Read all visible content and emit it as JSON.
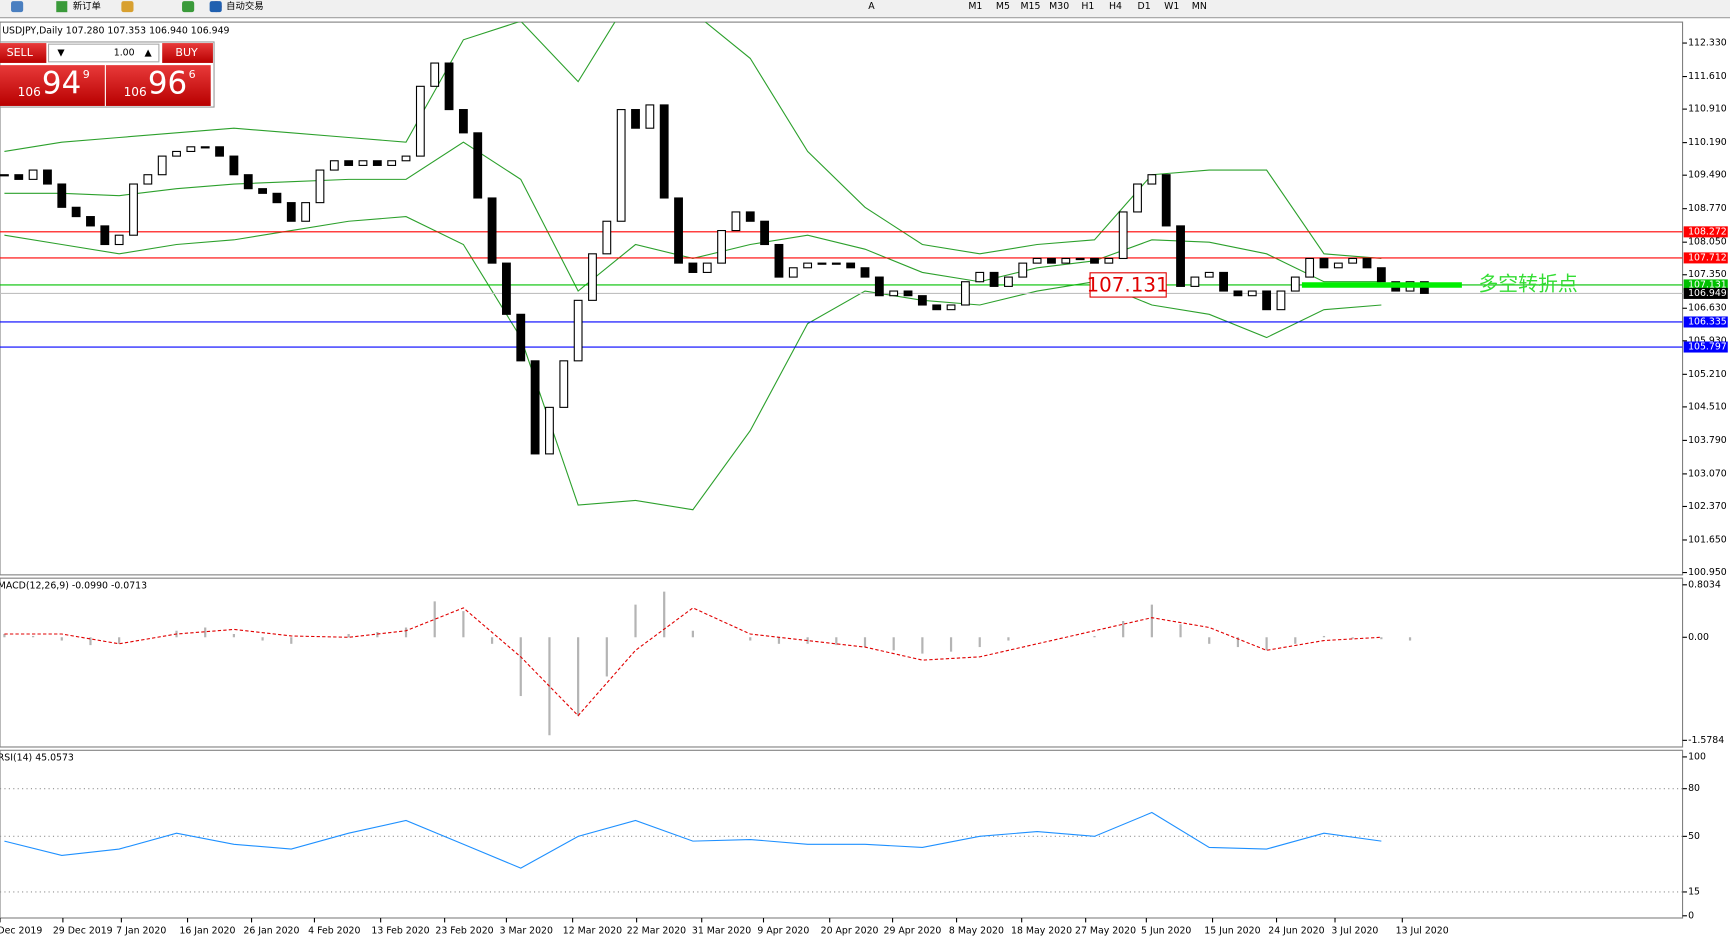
{
  "toolbar": {
    "new_order": "新订单",
    "auto_trading": "自动交易",
    "text_tool": "A",
    "timeframes": [
      "M1",
      "M5",
      "M15",
      "M30",
      "H1",
      "H4",
      "D1",
      "W1",
      "MN"
    ]
  },
  "trade_panel": {
    "sell": "SELL",
    "buy": "BUY",
    "lots": "1.00",
    "sell_price": {
      "big": "106",
      "main": "94",
      "sup": "9"
    },
    "buy_price": {
      "big": "106",
      "main": "96",
      "sup": "6"
    }
  },
  "chart_data": [
    {
      "type": "candlestick",
      "title": "USDJPY,Daily  107.280 107.353 106.940 106.949",
      "values": [
        109.5,
        109.4,
        109.6,
        109.3,
        108.8,
        108.6,
        108.4,
        108.0,
        108.2,
        109.3,
        109.5,
        109.9,
        110.0,
        110.1,
        110.1,
        109.9,
        109.5,
        109.2,
        109.1,
        108.9,
        108.5,
        108.9,
        109.6,
        109.8,
        109.7,
        109.8,
        109.7,
        109.8,
        109.9,
        111.4,
        111.9,
        110.9,
        110.4,
        109.0,
        107.6,
        106.5,
        105.5,
        103.5,
        104.5,
        105.5,
        106.8,
        107.8,
        108.5,
        110.9,
        110.5,
        111.0,
        109.0,
        107.6,
        107.4,
        107.6,
        108.3,
        108.7,
        108.5,
        108.0,
        107.3,
        107.5,
        107.6,
        107.6,
        107.6,
        107.5,
        107.3,
        106.9,
        107.0,
        106.9,
        106.7,
        106.6,
        106.7,
        107.2,
        107.4,
        107.1,
        107.3,
        107.6,
        107.7,
        107.6,
        107.7,
        107.7,
        107.6,
        107.7,
        108.7,
        109.3,
        109.5,
        108.4,
        107.1,
        107.3,
        107.4,
        107.0,
        106.9,
        107.0,
        106.6,
        107.0,
        107.3,
        107.7,
        107.5,
        107.6,
        107.7,
        107.5,
        107.2,
        107.0,
        107.2,
        106.95
      ],
      "bands": {
        "color": "#2ca02c",
        "upper": [
          110.0,
          110.2,
          110.3,
          110.4,
          110.5,
          110.4,
          110.3,
          110.2,
          112.4,
          112.8,
          111.5,
          113.5,
          113.0,
          112.0,
          110.0,
          108.8,
          108.0,
          107.8,
          108.0,
          108.1,
          109.5,
          109.6,
          109.6,
          107.8,
          107.7
        ],
        "middle": [
          109.1,
          109.1,
          109.05,
          109.2,
          109.3,
          109.35,
          109.4,
          109.4,
          110.2,
          109.4,
          107.0,
          108.0,
          107.7,
          108.0,
          108.2,
          107.9,
          107.4,
          107.2,
          107.5,
          107.65,
          108.1,
          108.05,
          107.8,
          107.2,
          107.2
        ],
        "lower": [
          108.2,
          108.0,
          107.8,
          108.0,
          108.1,
          108.3,
          108.5,
          108.6,
          108.0,
          106.0,
          102.4,
          102.5,
          102.3,
          104.0,
          106.3,
          107.0,
          106.8,
          106.7,
          107.0,
          107.2,
          106.7,
          106.5,
          106.0,
          106.6,
          106.7
        ]
      },
      "ylim": [
        100.9,
        112.78
      ],
      "yticks": [
        {
          "value": 112.33,
          "label": "112.330"
        },
        {
          "value": 111.61,
          "label": "111.610"
        },
        {
          "value": 110.91,
          "label": "110.910"
        },
        {
          "value": 110.19,
          "label": "110.190"
        },
        {
          "value": 109.49,
          "label": "109.490"
        },
        {
          "value": 108.77,
          "label": "108.770"
        },
        {
          "value": 108.05,
          "label": "108.050"
        },
        {
          "value": 107.35,
          "label": "107.350"
        },
        {
          "value": 106.63,
          "label": "106.630"
        },
        {
          "value": 105.93,
          "label": "105.930"
        },
        {
          "value": 105.21,
          "label": "105.210"
        },
        {
          "value": 104.51,
          "label": "104.510"
        },
        {
          "value": 103.79,
          "label": "103.790"
        },
        {
          "value": 103.07,
          "label": "103.070"
        },
        {
          "value": 102.37,
          "label": "102.370"
        },
        {
          "value": 101.65,
          "label": "101.650"
        },
        {
          "value": 100.95,
          "label": "100.950"
        }
      ],
      "levels": [
        {
          "value": 108.272,
          "color": "#ff0000",
          "label_background": "#ff0000"
        },
        {
          "value": 107.712,
          "color": "#ff0000",
          "label_background": "#ff0000"
        },
        {
          "value": 107.131,
          "color": "#00c000",
          "label_background": "#00c000"
        },
        {
          "value": 106.949,
          "color": "#c0c0c0",
          "label_background": "#000000"
        },
        {
          "value": 106.335,
          "color": "#0000ff",
          "label_background": "#0000ff"
        },
        {
          "value": 105.797,
          "color": "#0000ff",
          "label_background": "#0000ff"
        }
      ],
      "annotation": "多空转折点",
      "x_labels": [
        "Dec 2019",
        "29 Dec 2019",
        "7 Jan 2020",
        "16 Jan 2020",
        "26 Jan 2020",
        "4 Feb 2020",
        "13 Feb 2020",
        "23 Feb 2020",
        "3 Mar 2020",
        "12 Mar 2020",
        "22 Mar 2020",
        "31 Mar 2020",
        "9 Apr 2020",
        "20 Apr 2020",
        "29 Apr 2020",
        "8 May 2020",
        "18 May 2020",
        "27 May 2020",
        "5 Jun 2020",
        "15 Jun 2020",
        "24 Jun 2020",
        "3 Jul 2020",
        "13 Jul 2020"
      ]
    },
    {
      "type": "macd",
      "title": "MACD(12,26,9) -0.0990 -0.0713",
      "histogram": [
        0.05,
        0.02,
        -0.05,
        -0.12,
        -0.1,
        0.0,
        0.1,
        0.15,
        0.05,
        -0.05,
        -0.1,
        0.0,
        0.05,
        0.08,
        0.15,
        0.55,
        0.4,
        -0.1,
        -0.9,
        -1.5,
        -1.2,
        -0.6,
        0.5,
        0.7,
        0.1,
        0.0,
        -0.05,
        -0.1,
        -0.1,
        -0.12,
        -0.15,
        -0.2,
        -0.25,
        -0.22,
        -0.15,
        -0.05,
        0.0,
        0.0,
        0.02,
        0.25,
        0.5,
        0.2,
        -0.1,
        -0.15,
        -0.2,
        -0.1,
        0.02,
        -0.02,
        -0.03,
        -0.05
      ],
      "signal": [
        0.05,
        0.05,
        -0.1,
        0.05,
        0.12,
        0.02,
        0.0,
        0.1,
        0.45,
        -0.3,
        -1.2,
        -0.2,
        0.45,
        0.05,
        -0.05,
        -0.15,
        -0.35,
        -0.3,
        -0.1,
        0.1,
        0.3,
        0.15,
        -0.2,
        -0.05,
        0.0
      ],
      "histogram_color": "#b4b4b4",
      "signal_color": "#e00000",
      "ylim": [
        -1.68,
        0.905
      ],
      "yticks": [
        0.8034,
        {
          "value": 0,
          "label": "0.00"
        },
        -1.5784
      ]
    },
    {
      "type": "rsi",
      "title": "RSI(14) 45.0573",
      "values": [
        47,
        38,
        42,
        52,
        45,
        42,
        52,
        60,
        45,
        30,
        50,
        60,
        47,
        48,
        45,
        45,
        43,
        50,
        53,
        50,
        65,
        43,
        42,
        52,
        47
      ],
      "color": "#1e90ff",
      "ylim": [
        0,
        100
      ],
      "yticks": [
        100,
        80,
        50,
        15,
        0
      ]
    }
  ]
}
